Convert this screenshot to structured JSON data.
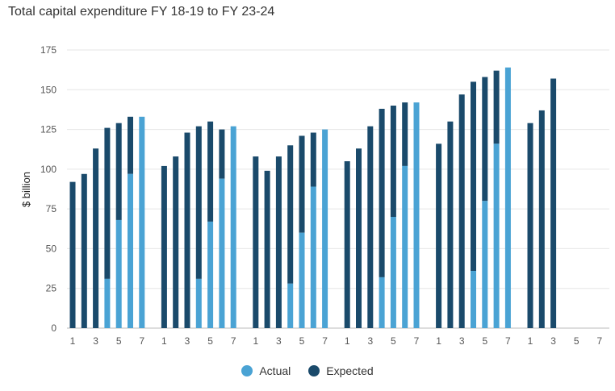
{
  "chart_data": {
    "type": "bar",
    "title": "Total capital expenditure FY 18-19 to FY 23-24",
    "ylabel": "$ billion",
    "xlabel": "",
    "ylim": [
      0,
      175
    ],
    "yticks": [
      0,
      25,
      50,
      75,
      100,
      125,
      150,
      175
    ],
    "grid": true,
    "legend_position": "bottom",
    "stacked": true,
    "group_tick_labels": [
      "1",
      "3",
      "5",
      "7"
    ],
    "series": [
      {
        "name": "Actual",
        "color": "#4aa3d4",
        "groups": [
          [
            0,
            0,
            0,
            31,
            68,
            97,
            133
          ],
          [
            0,
            0,
            0,
            31,
            67,
            94,
            127
          ],
          [
            0,
            0,
            0,
            28,
            60,
            89,
            125
          ],
          [
            0,
            0,
            0,
            32,
            70,
            102,
            142
          ],
          [
            0,
            0,
            0,
            36,
            80,
            116,
            164
          ],
          [
            0,
            0,
            0,
            0,
            0,
            0,
            0
          ]
        ]
      },
      {
        "name": "Expected",
        "color": "#1a4a6b",
        "groups": [
          [
            92,
            97,
            113,
            126,
            129,
            133,
            null
          ],
          [
            102,
            108,
            123,
            127,
            130,
            125,
            null
          ],
          [
            108,
            99,
            108,
            115,
            121,
            123,
            null
          ],
          [
            105,
            113,
            127,
            138,
            140,
            142,
            null
          ],
          [
            116,
            130,
            147,
            155,
            158,
            162,
            null
          ],
          [
            129,
            137,
            157,
            null,
            null,
            null,
            null
          ]
        ]
      }
    ]
  }
}
